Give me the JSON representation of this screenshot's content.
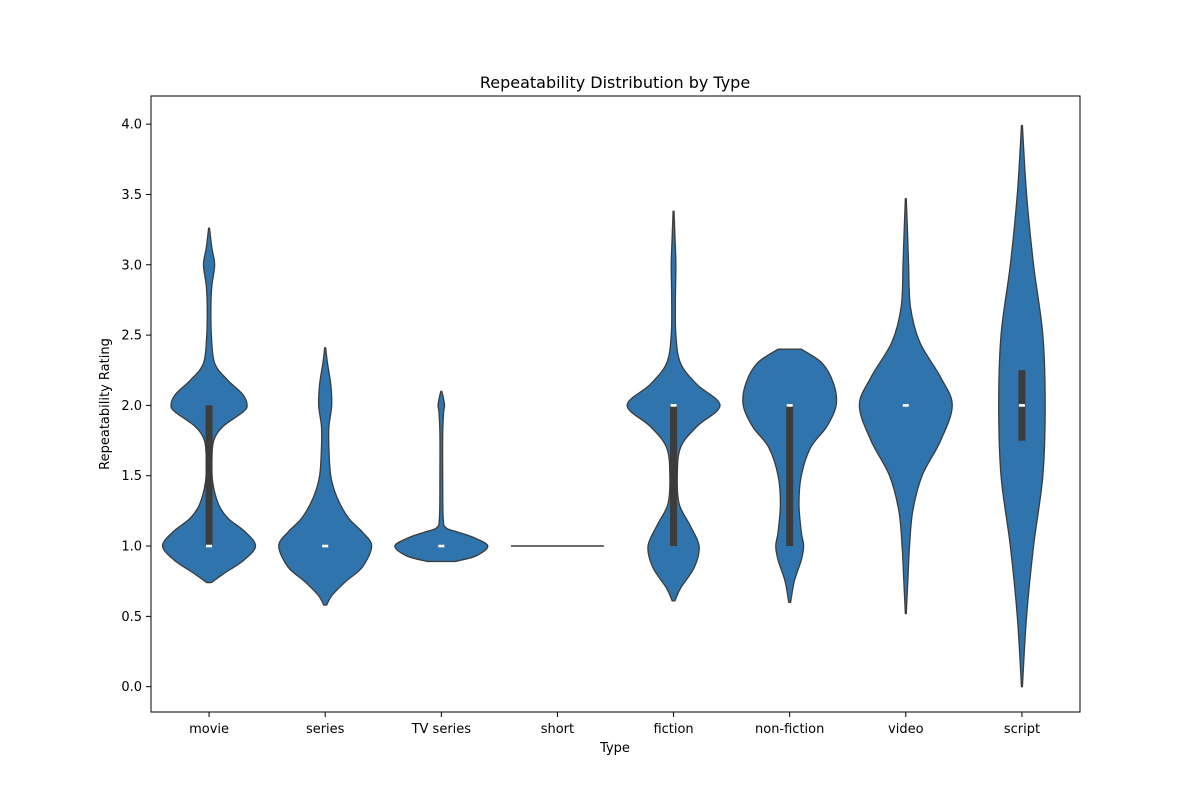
{
  "chart_data": {
    "type": "violin",
    "title": "Repeatability Distribution by Type",
    "xlabel": "Type",
    "ylabel": "Repeatability Rating",
    "ylim": [
      -0.18,
      4.2
    ],
    "yticks": [
      0.0,
      0.5,
      1.0,
      1.5,
      2.0,
      2.5,
      3.0,
      3.5,
      4.0
    ],
    "ytick_labels": [
      "0.0",
      "0.5",
      "1.0",
      "1.5",
      "2.0",
      "2.5",
      "3.0",
      "3.5",
      "4.0"
    ],
    "grid": false,
    "colors": {
      "fill": "#2f74ad",
      "outline": "#3c3c3c",
      "box": "#3c3c3c",
      "median": "#ffffff"
    },
    "categories": [
      "movie",
      "series",
      "TV series",
      "short",
      "fiction",
      "non-fiction",
      "video",
      "script"
    ],
    "violins": [
      {
        "category": "movie",
        "median": 1.0,
        "q1": 1.0,
        "q3": 2.0,
        "whisker_low": 1.0,
        "whisker_high": 2.0,
        "density": [
          [
            0.74,
            0.05
          ],
          [
            0.8,
            0.3
          ],
          [
            0.9,
            0.75
          ],
          [
            1.0,
            1.0
          ],
          [
            1.1,
            0.78
          ],
          [
            1.2,
            0.4
          ],
          [
            1.3,
            0.2
          ],
          [
            1.45,
            0.08
          ],
          [
            1.6,
            0.06
          ],
          [
            1.75,
            0.1
          ],
          [
            1.85,
            0.3
          ],
          [
            1.95,
            0.72
          ],
          [
            2.0,
            0.82
          ],
          [
            2.08,
            0.72
          ],
          [
            2.18,
            0.4
          ],
          [
            2.3,
            0.12
          ],
          [
            2.5,
            0.05
          ],
          [
            2.7,
            0.04
          ],
          [
            2.85,
            0.06
          ],
          [
            3.0,
            0.12
          ],
          [
            3.12,
            0.06
          ],
          [
            3.26,
            0.01
          ]
        ]
      },
      {
        "category": "series",
        "median": 1.0,
        "q1": 1.0,
        "q3": 1.0,
        "whisker_low": 1.0,
        "whisker_high": 1.0,
        "density": [
          [
            0.58,
            0.03
          ],
          [
            0.65,
            0.15
          ],
          [
            0.75,
            0.45
          ],
          [
            0.85,
            0.8
          ],
          [
            1.0,
            1.0
          ],
          [
            1.1,
            0.8
          ],
          [
            1.2,
            0.5
          ],
          [
            1.35,
            0.25
          ],
          [
            1.5,
            0.12
          ],
          [
            1.7,
            0.08
          ],
          [
            1.85,
            0.08
          ],
          [
            2.0,
            0.14
          ],
          [
            2.15,
            0.12
          ],
          [
            2.3,
            0.05
          ],
          [
            2.41,
            0.01
          ]
        ]
      },
      {
        "category": "TV series",
        "median": 1.0,
        "q1": 1.0,
        "q3": 1.0,
        "whisker_low": 1.0,
        "whisker_high": 1.0,
        "density": [
          [
            0.89,
            0.3
          ],
          [
            0.93,
            0.75
          ],
          [
            1.0,
            1.0
          ],
          [
            1.06,
            0.7
          ],
          [
            1.1,
            0.35
          ],
          [
            1.13,
            0.1
          ],
          [
            1.2,
            0.04
          ],
          [
            1.5,
            0.03
          ],
          [
            1.8,
            0.03
          ],
          [
            1.95,
            0.05
          ],
          [
            2.0,
            0.07
          ],
          [
            2.06,
            0.04
          ],
          [
            2.1,
            0.01
          ]
        ]
      },
      {
        "category": "short",
        "median": 1.0,
        "q1": 1.0,
        "q3": 1.0,
        "whisker_low": 1.0,
        "whisker_high": 1.0,
        "density": [
          [
            1.0,
            1.0
          ]
        ]
      },
      {
        "category": "fiction",
        "median": 2.0,
        "q1": 1.0,
        "q3": 2.0,
        "whisker_low": 1.0,
        "whisker_high": 2.0,
        "density": [
          [
            0.61,
            0.03
          ],
          [
            0.7,
            0.15
          ],
          [
            0.85,
            0.45
          ],
          [
            1.0,
            0.55
          ],
          [
            1.15,
            0.35
          ],
          [
            1.3,
            0.12
          ],
          [
            1.5,
            0.08
          ],
          [
            1.7,
            0.15
          ],
          [
            1.85,
            0.5
          ],
          [
            2.0,
            1.0
          ],
          [
            2.15,
            0.5
          ],
          [
            2.3,
            0.15
          ],
          [
            2.5,
            0.05
          ],
          [
            2.75,
            0.04
          ],
          [
            3.0,
            0.05
          ],
          [
            3.2,
            0.03
          ],
          [
            3.38,
            0.01
          ]
        ]
      },
      {
        "category": "non-fiction",
        "median": 2.0,
        "q1": 1.0,
        "q3": 2.0,
        "whisker_low": 1.0,
        "whisker_high": 2.0,
        "density": [
          [
            0.6,
            0.02
          ],
          [
            0.75,
            0.1
          ],
          [
            0.9,
            0.25
          ],
          [
            1.0,
            0.3
          ],
          [
            1.1,
            0.25
          ],
          [
            1.3,
            0.2
          ],
          [
            1.5,
            0.25
          ],
          [
            1.7,
            0.45
          ],
          [
            1.85,
            0.8
          ],
          [
            2.0,
            1.0
          ],
          [
            2.15,
            0.95
          ],
          [
            2.3,
            0.7
          ],
          [
            2.4,
            0.25
          ]
        ]
      },
      {
        "category": "video",
        "median": 2.0,
        "q1": 2.0,
        "q3": 2.0,
        "whisker_low": 2.0,
        "whisker_high": 2.0,
        "density": [
          [
            0.52,
            0.01
          ],
          [
            0.8,
            0.05
          ],
          [
            1.0,
            0.08
          ],
          [
            1.25,
            0.15
          ],
          [
            1.5,
            0.35
          ],
          [
            1.75,
            0.75
          ],
          [
            2.0,
            1.0
          ],
          [
            2.2,
            0.75
          ],
          [
            2.45,
            0.3
          ],
          [
            2.7,
            0.1
          ],
          [
            3.0,
            0.06
          ],
          [
            3.2,
            0.04
          ],
          [
            3.47,
            0.01
          ]
        ]
      },
      {
        "category": "script",
        "median": 2.0,
        "q1": 1.75,
        "q3": 2.25,
        "whisker_low": 1.75,
        "whisker_high": 2.25,
        "density": [
          [
            0.0,
            0.01
          ],
          [
            0.5,
            0.1
          ],
          [
            1.0,
            0.25
          ],
          [
            1.5,
            0.45
          ],
          [
            2.0,
            0.5
          ],
          [
            2.5,
            0.45
          ],
          [
            3.0,
            0.25
          ],
          [
            3.5,
            0.1
          ],
          [
            3.99,
            0.01
          ]
        ]
      }
    ]
  }
}
